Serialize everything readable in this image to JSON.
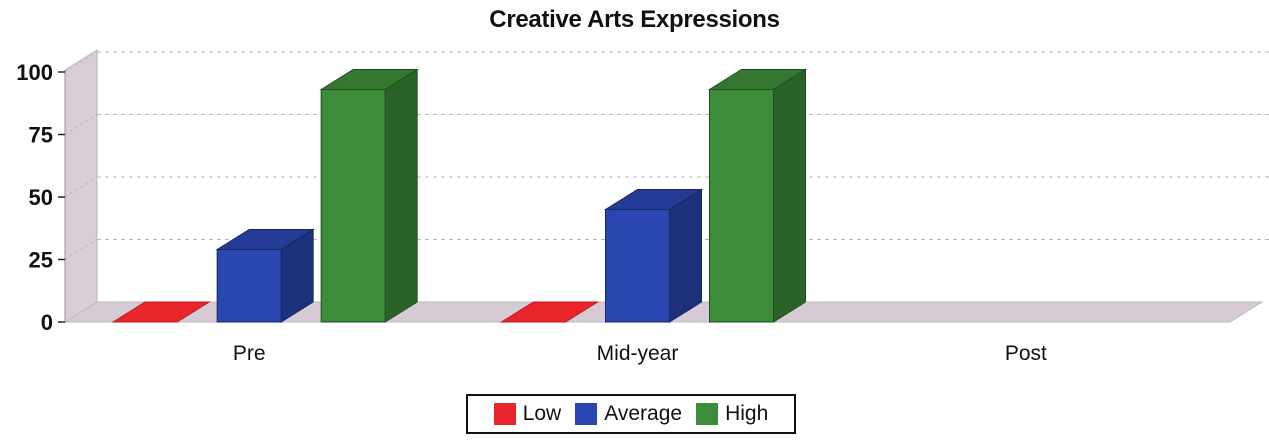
{
  "chart_data": {
    "type": "bar",
    "title": "Creative Arts Expressions",
    "categories": [
      "Pre",
      "Mid-year",
      "Post"
    ],
    "series": [
      {
        "name": "Low",
        "color": "#e8262b",
        "values": [
          0,
          0,
          null
        ]
      },
      {
        "name": "Average",
        "color": "#2a46b0",
        "values": [
          29,
          45,
          null
        ]
      },
      {
        "name": "High",
        "color": "#3c8c3a",
        "values": [
          93,
          93,
          null
        ]
      }
    ],
    "yticks": [
      0,
      25,
      50,
      75,
      100
    ],
    "ylim": [
      0,
      100
    ],
    "grid": true,
    "style": "3d",
    "legend_position": "bottom"
  }
}
